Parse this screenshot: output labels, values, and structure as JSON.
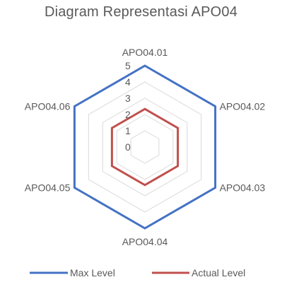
{
  "chart_data": {
    "type": "radar",
    "title": "Diagram Representasi APO04",
    "categories": [
      "APO04.01",
      "APO04.02",
      "APO04.03",
      "APO04.04",
      "APO04.05",
      "APO04.06"
    ],
    "ticks": [
      "0",
      "1",
      "2",
      "3",
      "4",
      "5"
    ],
    "rlim": [
      0,
      5
    ],
    "grid": true,
    "legend_position": "bottom",
    "series": [
      {
        "name": "Max Level",
        "color": "#4472c4",
        "values": [
          5,
          5,
          5,
          5,
          5,
          5
        ]
      },
      {
        "name": "Actual Level",
        "color": "#c0504d",
        "values": [
          2.34,
          2.34,
          2.34,
          2.34,
          2.34,
          2.34
        ]
      }
    ]
  },
  "colors": {
    "grid": "#d9d9d9",
    "text": "#595959"
  }
}
